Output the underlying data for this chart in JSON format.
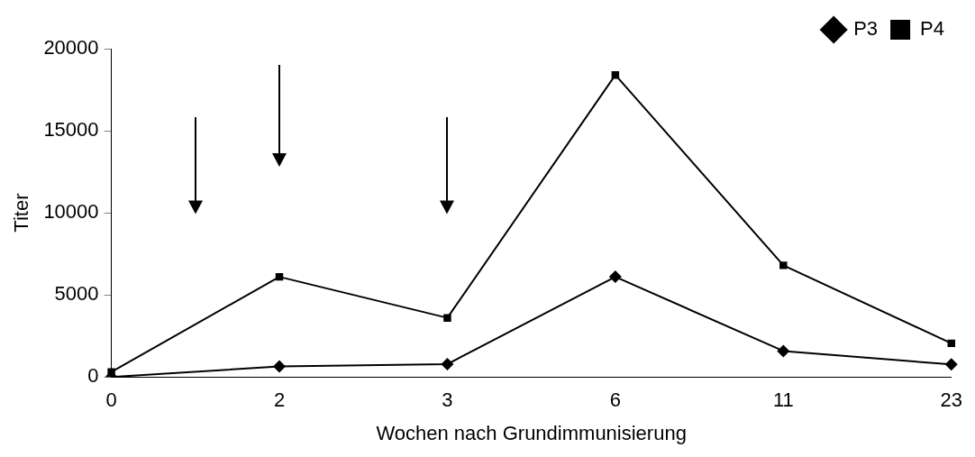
{
  "chart_data": {
    "type": "line",
    "xlabel": "Wochen nach Grundimmunisierung",
    "ylabel": "Titer",
    "categories": [
      "0",
      "2",
      "3",
      "6",
      "11",
      "23"
    ],
    "series": [
      {
        "name": "P3",
        "color": "#000000",
        "marker": "diamond",
        "values": [
          0,
          640,
          780,
          6100,
          1580,
          760
        ]
      },
      {
        "name": "P4",
        "color": "#000000",
        "marker": "square",
        "values": [
          300,
          6100,
          3600,
          18400,
          6800,
          2050
        ]
      }
    ],
    "ylim": [
      0,
      20000
    ],
    "yticks": [
      0,
      5000,
      10000,
      15000,
      20000
    ],
    "grid": false,
    "legend": "top right",
    "line_style": "solid"
  }
}
